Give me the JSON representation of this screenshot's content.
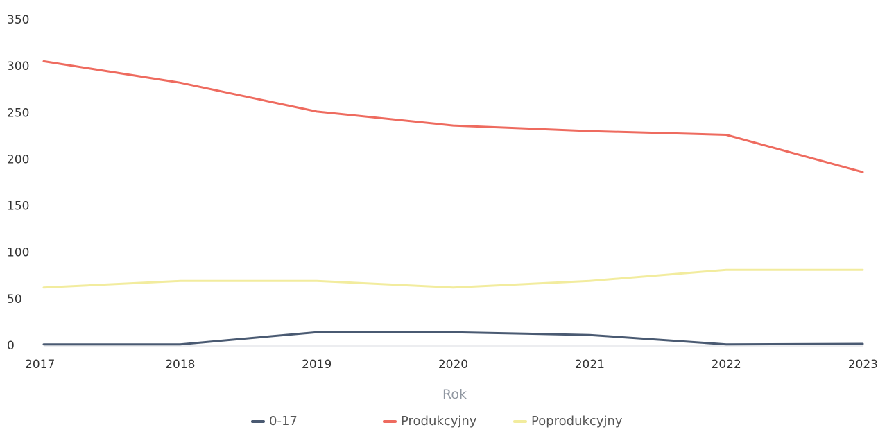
{
  "chart_data": {
    "type": "line",
    "title": "",
    "xlabel": "Rok",
    "ylabel": "",
    "categories": [
      "2017",
      "2018",
      "2019",
      "2020",
      "2021",
      "2022",
      "2023"
    ],
    "y_ticks": [
      "0",
      "50",
      "100",
      "150",
      "200",
      "250",
      "300",
      "350"
    ],
    "ylim": [
      0,
      350
    ],
    "grid": false,
    "legend_position": "bottom",
    "series": [
      {
        "name": "0-17",
        "color": "#4a5a72",
        "values": [
          1,
          1,
          14,
          14,
          11,
          1,
          1.5
        ]
      },
      {
        "name": "Produkcyjny",
        "color": "#ee6b5f",
        "values": [
          305,
          282,
          251,
          236,
          230,
          226,
          186
        ]
      },
      {
        "name": "Poprodukcyjny",
        "color": "#f2ec9e",
        "values": [
          62,
          69,
          69,
          62,
          69,
          81,
          81
        ]
      }
    ]
  }
}
